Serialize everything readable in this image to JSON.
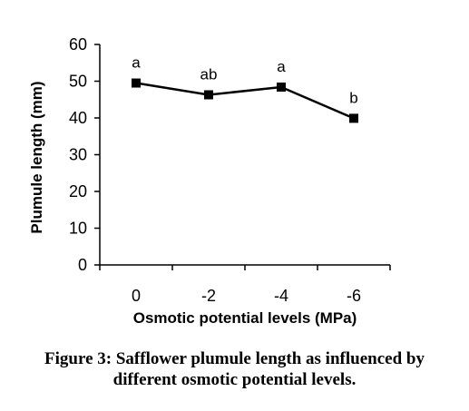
{
  "chart_data": {
    "type": "line",
    "categories": [
      "0",
      "-2",
      "-4",
      "-6"
    ],
    "series": [
      {
        "values": [
          49.5,
          46.3,
          48.4,
          39.9
        ],
        "labels": [
          "a",
          "ab",
          "a",
          "b"
        ]
      }
    ],
    "xlabel": "Osmotic potential levels (MPa)",
    "ylabel": "Plumule length (mm)",
    "ylim": [
      0,
      60
    ],
    "yticks": [
      0,
      10,
      20,
      30,
      40,
      50,
      60
    ],
    "grid": false,
    "legend": "none",
    "line_color": "#000000",
    "marker": "square"
  },
  "caption": {
    "line1": "Figure 3: Safflower plumule length as influenced by",
    "line2": "different osmotic potential levels."
  }
}
